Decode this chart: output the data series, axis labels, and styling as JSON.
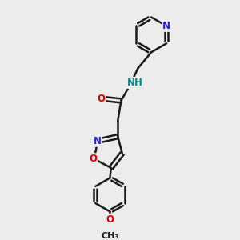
{
  "background_color": "#ececec",
  "bond_color": "#1a1a1a",
  "bond_width": 1.8,
  "atom_colors": {
    "N": "#2222cc",
    "O": "#dd0000",
    "N_amide": "#008888",
    "C": "#1a1a1a"
  },
  "font_size_atoms": 8.5,
  "font_size_small": 8
}
